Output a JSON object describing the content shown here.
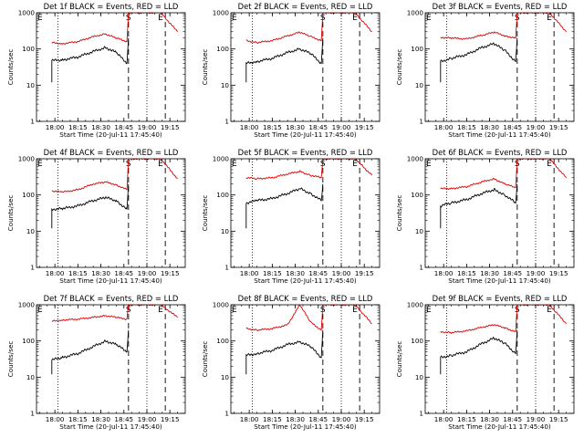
{
  "figure": {
    "ylabel": "Counts/sec",
    "xlabel": "Start Time (20-Jul-11 17:45:40)",
    "x_ticks": [
      "18:00",
      "18:15",
      "18:30",
      "18:45",
      "19:00",
      "19:15"
    ],
    "y_ticks": [
      "1",
      "10",
      "100",
      "1000"
    ],
    "markers": [
      "E",
      "S",
      "E"
    ],
    "colors": {
      "events": "#000000",
      "lld": "#dd0000"
    }
  },
  "chart_data": [
    {
      "type": "line",
      "title": "Det 1f BLACK = Events, RED = LLD",
      "xlabel": "Start Time (20-Jul-11 17:45:40)",
      "ylabel": "Counts/sec",
      "log_y": true,
      "ylim": [
        1,
        1000
      ],
      "series": [
        {
          "name": "Events",
          "color": "#000000",
          "x": [
            "17:58",
            "18:05",
            "18:15",
            "18:25",
            "18:33",
            "18:40",
            "18:47",
            "18:48"
          ],
          "values": [
            48,
            50,
            60,
            85,
            110,
            80,
            40,
            200
          ]
        },
        {
          "name": "LLD",
          "color": "#dd0000",
          "x": [
            "17:58",
            "18:05",
            "18:15",
            "18:25",
            "18:33",
            "18:40",
            "18:47",
            "18:48",
            "19:09",
            "19:20"
          ],
          "values": [
            150,
            140,
            160,
            220,
            260,
            200,
            160,
            1000,
            1000,
            300
          ]
        }
      ]
    },
    {
      "type": "line",
      "title": "Det 2f BLACK = Events, RED = LLD",
      "xlabel": "Start Time (20-Jul-11 17:45:40)",
      "ylabel": "Counts/sec",
      "log_y": true,
      "ylim": [
        1,
        1000
      ],
      "series": [
        {
          "name": "Events",
          "color": "#000000",
          "x": [
            "17:58",
            "18:05",
            "18:15",
            "18:25",
            "18:33",
            "18:40",
            "18:47",
            "18:48"
          ],
          "values": [
            40,
            45,
            55,
            80,
            100,
            75,
            40,
            200
          ]
        },
        {
          "name": "LLD",
          "color": "#dd0000",
          "x": [
            "17:58",
            "18:05",
            "18:15",
            "18:25",
            "18:33",
            "18:40",
            "18:47",
            "18:48",
            "19:09",
            "19:20"
          ],
          "values": [
            170,
            150,
            170,
            230,
            290,
            220,
            170,
            1000,
            1000,
            300
          ]
        }
      ]
    },
    {
      "type": "line",
      "title": "Det 3f BLACK = Events, RED = LLD",
      "xlabel": "Start Time (20-Jul-11 17:45:40)",
      "ylabel": "Counts/sec",
      "log_y": true,
      "ylim": [
        1,
        1000
      ],
      "series": [
        {
          "name": "Events",
          "color": "#000000",
          "x": [
            "17:58",
            "18:05",
            "18:15",
            "18:25",
            "18:33",
            "18:40",
            "18:47",
            "18:48"
          ],
          "values": [
            45,
            55,
            70,
            110,
            140,
            90,
            45,
            200
          ]
        },
        {
          "name": "LLD",
          "color": "#dd0000",
          "x": [
            "17:58",
            "18:05",
            "18:15",
            "18:25",
            "18:33",
            "18:40",
            "18:47",
            "18:48",
            "19:09",
            "19:20"
          ],
          "values": [
            210,
            200,
            190,
            240,
            290,
            230,
            200,
            1000,
            1000,
            300
          ]
        }
      ]
    },
    {
      "type": "line",
      "title": "Det 4f BLACK = Events, RED = LLD",
      "xlabel": "Start Time (20-Jul-11 17:45:40)",
      "ylabel": "Counts/sec",
      "log_y": true,
      "ylim": [
        1,
        1000
      ],
      "series": [
        {
          "name": "Events",
          "color": "#000000",
          "x": [
            "17:58",
            "18:05",
            "18:15",
            "18:25",
            "18:33",
            "18:40",
            "18:47",
            "18:48"
          ],
          "values": [
            40,
            42,
            50,
            70,
            85,
            70,
            40,
            200
          ]
        },
        {
          "name": "LLD",
          "color": "#dd0000",
          "x": [
            "17:58",
            "18:05",
            "18:15",
            "18:25",
            "18:33",
            "18:40",
            "18:47",
            "18:48",
            "19:09",
            "19:20"
          ],
          "values": [
            130,
            120,
            140,
            200,
            230,
            190,
            140,
            1000,
            1000,
            280
          ]
        }
      ]
    },
    {
      "type": "line",
      "title": "Det 5f BLACK = Events, RED = LLD",
      "xlabel": "Start Time (20-Jul-11 17:45:40)",
      "ylabel": "Counts/sec",
      "log_y": true,
      "ylim": [
        1,
        1000
      ],
      "series": [
        {
          "name": "Events",
          "color": "#000000",
          "x": [
            "17:58",
            "18:05",
            "18:15",
            "18:25",
            "18:33",
            "18:40",
            "18:47",
            "18:48"
          ],
          "values": [
            60,
            70,
            80,
            110,
            150,
            110,
            70,
            200
          ]
        },
        {
          "name": "LLD",
          "color": "#dd0000",
          "x": [
            "17:58",
            "18:05",
            "18:15",
            "18:25",
            "18:33",
            "18:40",
            "18:47",
            "18:48",
            "19:09",
            "19:20"
          ],
          "values": [
            300,
            280,
            300,
            380,
            450,
            350,
            300,
            1000,
            1000,
            350
          ]
        }
      ]
    },
    {
      "type": "line",
      "title": "Det 6f BLACK = Events, RED = LLD",
      "xlabel": "Start Time (20-Jul-11 17:45:40)",
      "ylabel": "Counts/sec",
      "log_y": true,
      "ylim": [
        1,
        1000
      ],
      "series": [
        {
          "name": "Events",
          "color": "#000000",
          "x": [
            "17:58",
            "18:05",
            "18:15",
            "18:25",
            "18:33",
            "18:40",
            "18:47",
            "18:48"
          ],
          "values": [
            50,
            60,
            75,
            110,
            140,
            100,
            60,
            200
          ]
        },
        {
          "name": "LLD",
          "color": "#dd0000",
          "x": [
            "17:58",
            "18:05",
            "18:15",
            "18:25",
            "18:33",
            "18:40",
            "18:47",
            "18:48",
            "19:09",
            "19:20"
          ],
          "values": [
            150,
            150,
            170,
            230,
            280,
            200,
            160,
            1000,
            1000,
            300
          ]
        }
      ]
    },
    {
      "type": "line",
      "title": "Det 7f BLACK = Events, RED = LLD",
      "xlabel": "Start Time (20-Jul-11 17:45:40)",
      "ylabel": "Counts/sec",
      "log_y": true,
      "ylim": [
        1,
        1000
      ],
      "series": [
        {
          "name": "Events",
          "color": "#000000",
          "x": [
            "17:58",
            "18:05",
            "18:15",
            "18:25",
            "18:33",
            "18:40",
            "18:47",
            "18:48"
          ],
          "values": [
            30,
            35,
            45,
            70,
            100,
            80,
            50,
            200
          ]
        },
        {
          "name": "LLD",
          "color": "#dd0000",
          "x": [
            "17:58",
            "18:05",
            "18:15",
            "18:25",
            "18:33",
            "18:40",
            "18:47",
            "18:48",
            "19:09",
            "19:20"
          ],
          "values": [
            350,
            380,
            400,
            450,
            500,
            450,
            400,
            1000,
            1000,
            450
          ]
        }
      ]
    },
    {
      "type": "line",
      "title": "Det 8f BLACK = Events, RED = LLD",
      "xlabel": "Start Time (20-Jul-11 17:45:40)",
      "ylabel": "Counts/sec",
      "log_y": true,
      "ylim": [
        1,
        1000
      ],
      "series": [
        {
          "name": "Events",
          "color": "#000000",
          "x": [
            "17:58",
            "18:05",
            "18:15",
            "18:25",
            "18:33",
            "18:40",
            "18:47",
            "18:48"
          ],
          "values": [
            40,
            45,
            55,
            80,
            95,
            70,
            35,
            200
          ]
        },
        {
          "name": "LLD",
          "color": "#dd0000",
          "x": [
            "17:58",
            "18:05",
            "18:15",
            "18:25",
            "18:33",
            "18:40",
            "18:47",
            "18:48",
            "19:09",
            "19:20"
          ],
          "values": [
            220,
            200,
            220,
            280,
            1000,
            330,
            200,
            1000,
            1000,
            300
          ]
        }
      ]
    },
    {
      "type": "line",
      "title": "Det 9f BLACK = Events, RED = LLD",
      "xlabel": "Start Time (20-Jul-11 17:45:40)",
      "ylabel": "Counts/sec",
      "log_y": true,
      "ylim": [
        1,
        1000
      ],
      "series": [
        {
          "name": "Events",
          "color": "#000000",
          "x": [
            "17:58",
            "18:05",
            "18:15",
            "18:25",
            "18:33",
            "18:40",
            "18:47",
            "18:48"
          ],
          "values": [
            35,
            40,
            50,
            85,
            120,
            85,
            45,
            200
          ]
        },
        {
          "name": "LLD",
          "color": "#dd0000",
          "x": [
            "17:58",
            "18:05",
            "18:15",
            "18:25",
            "18:33",
            "18:40",
            "18:47",
            "18:48",
            "19:09",
            "19:20"
          ],
          "values": [
            180,
            170,
            190,
            240,
            280,
            230,
            180,
            1000,
            1000,
            300
          ]
        }
      ]
    }
  ]
}
